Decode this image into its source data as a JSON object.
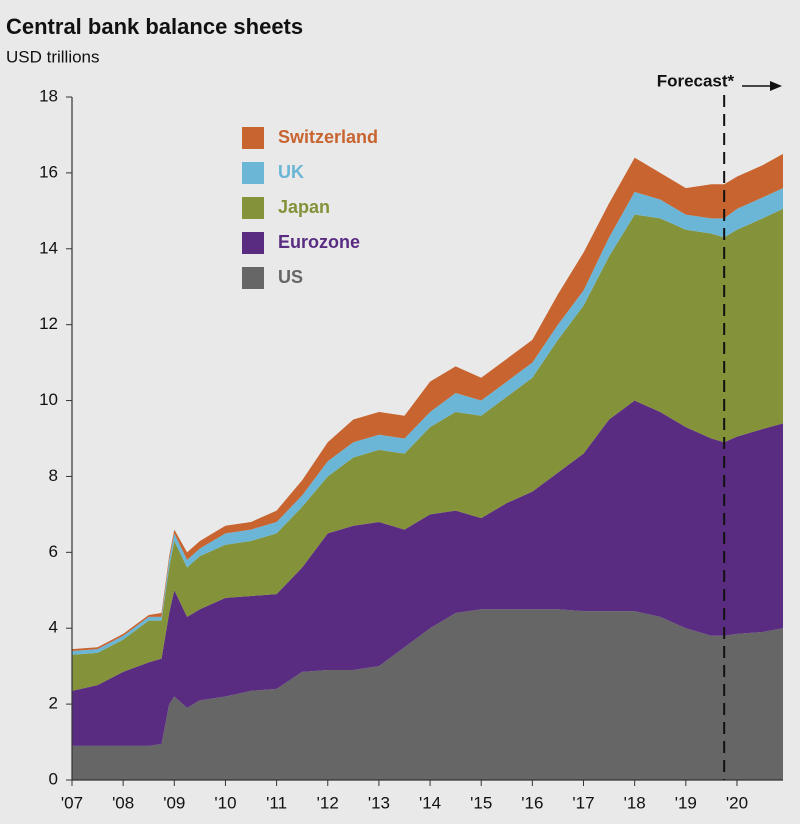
{
  "chart_data": {
    "type": "stacked_area",
    "title": "Central bank balance sheets",
    "subtitle": "USD trillions",
    "annotation": "Forecast*",
    "forecast_x": 2019.75,
    "x": [
      2007,
      2007.5,
      2008,
      2008.5,
      2008.75,
      2008.9,
      2009,
      2009.25,
      2009.5,
      2010,
      2010.5,
      2011,
      2011.5,
      2012,
      2012.5,
      2013,
      2013.5,
      2014,
      2014.5,
      2015,
      2015.5,
      2016,
      2016.5,
      2017,
      2017.5,
      2018,
      2018.5,
      2019,
      2019.5,
      2019.75,
      2020,
      2020.5,
      2020.9
    ],
    "series": [
      {
        "name": "US",
        "color": "#666666",
        "values": [
          0.9,
          0.9,
          0.9,
          0.9,
          0.95,
          2.0,
          2.2,
          1.9,
          2.1,
          2.2,
          2.35,
          2.4,
          2.85,
          2.9,
          2.9,
          3.0,
          3.5,
          4.0,
          4.4,
          4.5,
          4.5,
          4.5,
          4.5,
          4.45,
          4.45,
          4.45,
          4.3,
          4.0,
          3.8,
          3.8,
          3.85,
          3.9,
          4.0
        ]
      },
      {
        "name": "Eurozone",
        "color": "#592c82",
        "values": [
          1.45,
          1.6,
          1.95,
          2.2,
          2.25,
          2.4,
          2.8,
          2.4,
          2.4,
          2.6,
          2.5,
          2.5,
          2.75,
          3.6,
          3.8,
          3.8,
          3.1,
          3.0,
          2.7,
          2.4,
          2.8,
          3.1,
          3.6,
          4.15,
          5.05,
          5.55,
          5.4,
          5.3,
          5.2,
          5.1,
          5.2,
          5.35,
          5.4
        ]
      },
      {
        "name": "Japan",
        "color": "#84923a",
        "values": [
          0.95,
          0.85,
          0.85,
          1.1,
          1.0,
          1.2,
          1.3,
          1.3,
          1.4,
          1.4,
          1.45,
          1.6,
          1.6,
          1.5,
          1.8,
          1.9,
          2.0,
          2.3,
          2.6,
          2.7,
          2.8,
          3.0,
          3.5,
          3.9,
          4.3,
          4.9,
          5.1,
          5.2,
          5.4,
          5.4,
          5.45,
          5.55,
          5.65
        ]
      },
      {
        "name": "UK",
        "color": "#6bb6d6",
        "values": [
          0.1,
          0.1,
          0.1,
          0.1,
          0.1,
          0.2,
          0.2,
          0.2,
          0.2,
          0.3,
          0.3,
          0.3,
          0.3,
          0.4,
          0.4,
          0.4,
          0.4,
          0.4,
          0.5,
          0.4,
          0.4,
          0.4,
          0.4,
          0.4,
          0.5,
          0.6,
          0.5,
          0.4,
          0.4,
          0.5,
          0.55,
          0.55,
          0.55
        ]
      },
      {
        "name": "Switzerland",
        "color": "#c8642f",
        "values": [
          0.05,
          0.05,
          0.05,
          0.05,
          0.1,
          0.1,
          0.1,
          0.2,
          0.2,
          0.2,
          0.2,
          0.3,
          0.4,
          0.5,
          0.6,
          0.6,
          0.6,
          0.8,
          0.7,
          0.6,
          0.6,
          0.6,
          0.8,
          1.0,
          0.9,
          0.9,
          0.7,
          0.7,
          0.9,
          0.9,
          0.85,
          0.85,
          0.9
        ]
      }
    ],
    "xlim": [
      2007,
      2020.9
    ],
    "xticks": [
      {
        "value": 2007,
        "label": "'07"
      },
      {
        "value": 2008,
        "label": "'08"
      },
      {
        "value": 2009,
        "label": "'09"
      },
      {
        "value": 2010,
        "label": "'10"
      },
      {
        "value": 2011,
        "label": "'11"
      },
      {
        "value": 2012,
        "label": "'12"
      },
      {
        "value": 2013,
        "label": "'13"
      },
      {
        "value": 2014,
        "label": "'14"
      },
      {
        "value": 2015,
        "label": "'15"
      },
      {
        "value": 2016,
        "label": "'16"
      },
      {
        "value": 2017,
        "label": "'17"
      },
      {
        "value": 2018,
        "label": "'18"
      },
      {
        "value": 2019,
        "label": "'19"
      },
      {
        "value": 2020,
        "label": "'20"
      }
    ],
    "ylim": [
      0,
      18
    ],
    "yticks": [
      0,
      2,
      4,
      6,
      8,
      10,
      12,
      14,
      16,
      18
    ],
    "legend": "upper left"
  }
}
